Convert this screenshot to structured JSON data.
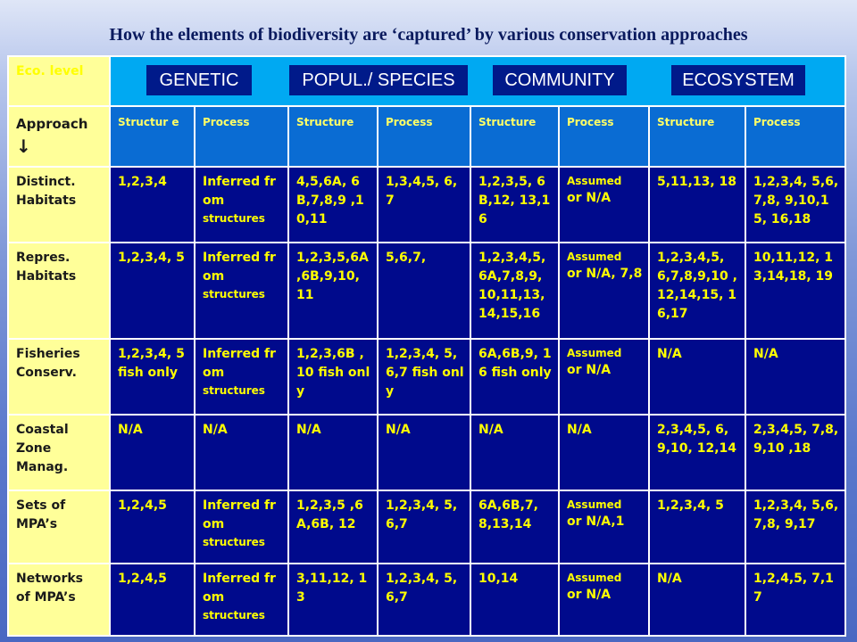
{
  "title": "How the elements of biodiversity are ‘captured’ by various conservation approaches",
  "eco_level_label": "Eco. level",
  "approach_label": "Approach",
  "approach_arrow": "↓",
  "levels": [
    "GENETIC",
    "POPUL./ SPECIES",
    "COMMUNITY",
    "ECOSYSTEM"
  ],
  "sub_headers": [
    "Structur e",
    "Process",
    "Structure",
    "Process",
    "Structure",
    "Process",
    "Structure",
    "Process"
  ],
  "rows": [
    {
      "label": [
        "Distinct.",
        "Habitats"
      ],
      "gen_struct": "1,2,3,4",
      "gen_proc": [
        "Inferred from",
        "structures"
      ],
      "pop_struct": "4,5,6A, 6B,7,8,9 ,10,11",
      "pop_proc": "1,3,4,5, 6,7",
      "com_struct": "1,2,3,5, 6B,12, 13,16",
      "com_proc": [
        "Assumed",
        "or N/A"
      ],
      "eco_struct": "5,11,13, 18",
      "eco_proc": "1,2,3,4, 5,6,7,8, 9,10,15, 16,18"
    },
    {
      "label": [
        "Repres.",
        "Habitats"
      ],
      "gen_struct": "1,2,3,4, 5",
      "gen_proc": [
        "Inferred from",
        "structures"
      ],
      "pop_struct": "1,2,3,5,6A ,6B,9,10, 11",
      "pop_proc": "5,6,7,",
      "com_struct": "1,2,3,4,5, 6A,7,8,9, 10,11,13, 14,15,16",
      "com_proc": [
        "Assumed",
        "or N/A, 7,8"
      ],
      "eco_struct": "1,2,3,4,5, 6,7,8,9,10 ,12,14,15, 16,17",
      "eco_proc": "10,11,12, 13,14,18, 19"
    },
    {
      "label": [
        "Fisheries",
        "Conserv."
      ],
      "gen_struct": "1,2,3,4, 5 fish only",
      "gen_proc": [
        "Inferred from",
        "structures"
      ],
      "pop_struct": "1,2,3,6B ,10 fish only",
      "pop_proc": "1,2,3,4, 5,6,7 fish only",
      "com_struct": "6A,6B,9, 16 fish only",
      "com_proc": [
        "Assumed",
        "or N/A"
      ],
      "eco_struct": "N/A",
      "eco_proc": "N/A"
    },
    {
      "label": [
        "Coastal",
        "Zone",
        "Manag."
      ],
      "gen_struct": "N/A",
      "gen_proc": "N/A",
      "pop_struct": "N/A",
      "pop_proc": "N/A",
      "com_struct": "N/A",
      "com_proc": "N/A",
      "eco_struct": "2,3,4,5, 6,9,10, 12,14",
      "eco_proc": "2,3,4,5, 7,8,9,10 ,18"
    },
    {
      "label": [
        "Sets of",
        "MPA’s"
      ],
      "gen_struct": "1,2,4,5",
      "gen_proc": [
        "Inferred from",
        "structures"
      ],
      "pop_struct": "1,2,3,5 ,6A,6B, 12",
      "pop_proc": "1,2,3,4, 5,6,7",
      "com_struct": "6A,6B,7, 8,13,14",
      "com_proc": [
        "Assumed",
        "or N/A,1"
      ],
      "eco_struct": "1,2,3,4, 5",
      "eco_proc": "1,2,3,4, 5,6,7,8, 9,17"
    },
    {
      "label": [
        "Networks",
        "of MPA’s"
      ],
      "gen_struct": "1,2,4,5",
      "gen_proc": [
        "Inferred from",
        "structures"
      ],
      "pop_struct": "3,11,12, 13",
      "pop_proc": "1,2,3,4, 5,6,7",
      "com_struct": "10,14",
      "com_proc": [
        "Assumed",
        "or N/A"
      ],
      "eco_struct": "N/A",
      "eco_proc": "1,2,4,5, 7,17"
    }
  ],
  "colors": {
    "label_bg": "#ffff99",
    "header_bg": "#00a9f2",
    "subheader_bg": "#0a6cd3",
    "cell_bg": "#000a8c",
    "cell_text": "#ffff00",
    "pill_bg": "#001a8a"
  }
}
